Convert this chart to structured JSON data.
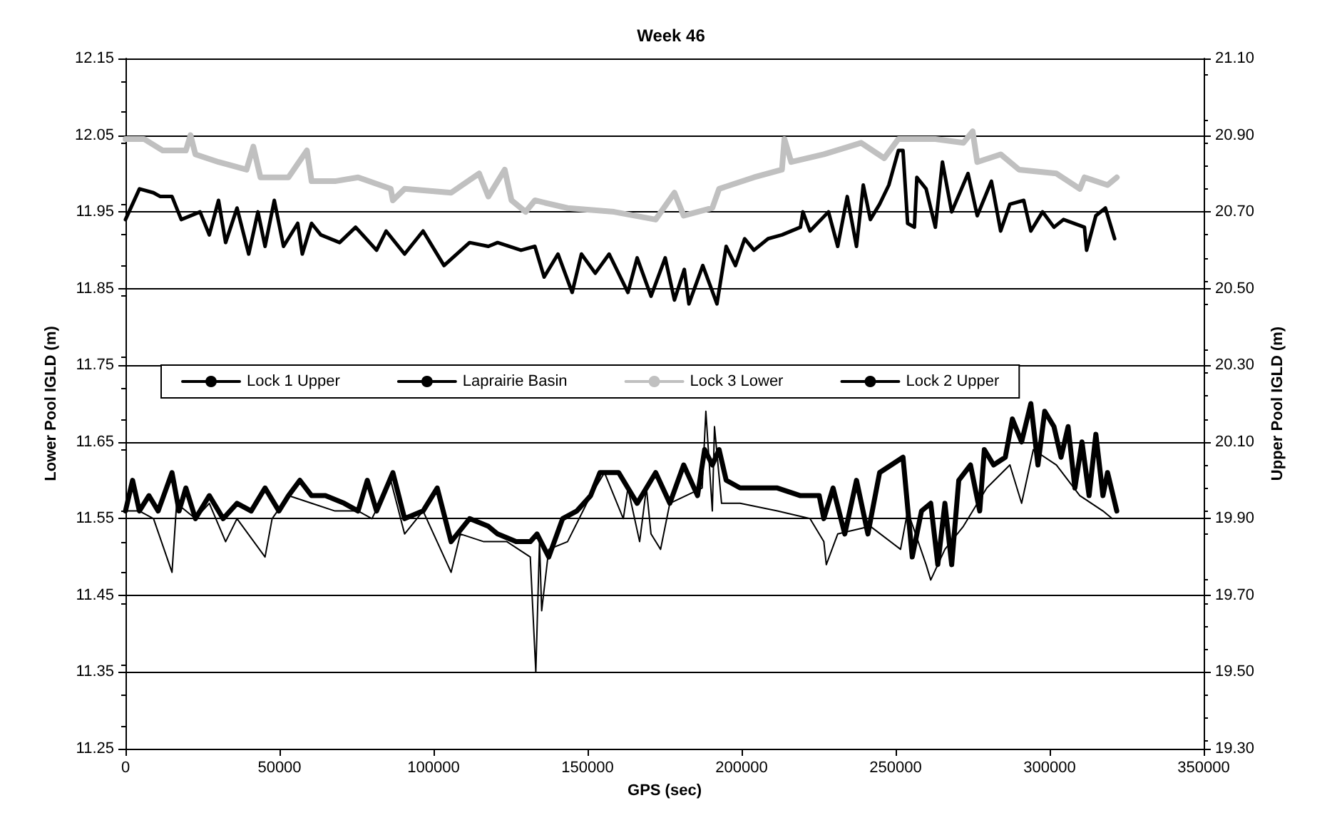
{
  "chart_data": {
    "type": "line",
    "title": "Week 46",
    "xlabel": "GPS (sec)",
    "ylabel": "Lower Pool IGLD (m)",
    "y2label": "Upper Pool IGLD (m)",
    "xlim": [
      0,
      350000
    ],
    "xticks": [
      0,
      50000,
      100000,
      150000,
      200000,
      250000,
      300000,
      350000
    ],
    "ylim": [
      11.25,
      12.15
    ],
    "yticks": [
      11.25,
      11.35,
      11.45,
      11.55,
      11.65,
      11.75,
      11.85,
      11.95,
      12.05,
      12.15
    ],
    "y2lim": [
      19.3,
      21.1
    ],
    "y2ticks": [
      {
        "value": 19.3,
        "label": "19.30"
      },
      {
        "value": 19.5,
        "label": "19.50"
      },
      {
        "value": 19.7,
        "label": "19.70"
      },
      {
        "value": 19.9,
        "label": "19.90"
      },
      {
        "value": 20.1,
        "label": "20.10"
      },
      {
        "value": 20.3,
        "label": "20.30"
      },
      {
        "value": 20.5,
        "label": "20.50"
      },
      {
        "value": 20.7,
        "label": "20.70"
      },
      {
        "value": 20.9,
        "label": "20.90"
      },
      {
        "value": 21.1,
        "label": "21.10"
      }
    ],
    "grid": "y",
    "legend": "left",
    "marker": "none",
    "line_style": "solid",
    "series": [
      {
        "name": "Lock 1 Upper",
        "color": "#000000",
        "x": [
          0,
          2300,
          4500,
          7600,
          10600,
          15100,
          17400,
          19600,
          22700,
          27200,
          31700,
          36200,
          40800,
          45300,
          49800,
          52900,
          56600,
          60400,
          64900,
          71000,
          75500,
          78500,
          81500,
          86800,
          90600,
          96600,
          101200,
          105700,
          111700,
          117800,
          120800,
          126800,
          131400,
          133600,
          137400,
          141900,
          146500,
          151000,
          154000,
          160100,
          166100,
          172100,
          176700,
          181200,
          185700,
          188000,
          190500,
          192700,
          195000,
          199500,
          204000,
          211600,
          219100,
          222200,
          225200,
          226700,
          229700,
          233500,
          237300,
          241000,
          244800,
          248600,
          252400,
          255400,
          258400,
          261400,
          263700,
          266000,
          268200,
          270500,
          274300,
          277300,
          278800,
          281800,
          285600,
          287900,
          290900,
          293900,
          296200,
          298400,
          301400,
          303700,
          306000,
          308200,
          310500,
          312800,
          315000,
          317300,
          318800,
          321800
        ],
        "values": [
          11.56,
          11.6,
          11.56,
          11.58,
          11.56,
          11.61,
          11.56,
          11.59,
          11.55,
          11.58,
          11.55,
          11.57,
          11.56,
          11.59,
          11.56,
          11.58,
          11.6,
          11.58,
          11.58,
          11.57,
          11.56,
          11.6,
          11.56,
          11.61,
          11.55,
          11.56,
          11.59,
          11.52,
          11.55,
          11.54,
          11.53,
          11.52,
          11.52,
          11.53,
          11.5,
          11.55,
          11.56,
          11.58,
          11.61,
          11.61,
          11.57,
          11.61,
          11.57,
          11.62,
          11.58,
          11.64,
          11.62,
          11.64,
          11.6,
          11.59,
          11.59,
          11.59,
          11.58,
          11.58,
          11.58,
          11.55,
          11.59,
          11.53,
          11.6,
          11.53,
          11.61,
          11.62,
          11.63,
          11.5,
          11.56,
          11.57,
          11.49,
          11.57,
          11.49,
          11.6,
          11.62,
          11.56,
          11.64,
          11.62,
          11.63,
          11.68,
          11.65,
          11.7,
          11.62,
          11.69,
          11.67,
          11.63,
          11.67,
          11.59,
          11.65,
          11.58,
          11.66,
          11.58,
          11.61,
          11.56
        ]
      },
      {
        "name": "Laprairie Basin",
        "color": "#000000",
        "x": [
          0,
          4500,
          9100,
          15100,
          16600,
          22700,
          27200,
          32500,
          36200,
          45300,
          47600,
          52900,
          60400,
          68000,
          75500,
          80000,
          86100,
          90600,
          96600,
          105700,
          108700,
          116300,
          123800,
          131400,
          133200,
          134400,
          135100,
          137400,
          143500,
          151000,
          155500,
          161600,
          163100,
          166900,
          169100,
          170600,
          173700,
          176700,
          187200,
          188400,
          190500,
          191200,
          193500,
          199500,
          211600,
          222200,
          226700,
          227500,
          231200,
          241800,
          251600,
          253900,
          259900,
          261400,
          266000,
          272000,
          279600,
          287100,
          290900,
          294700,
          302200,
          309800,
          317300,
          320300
        ],
        "values": [
          11.56,
          11.56,
          11.55,
          11.48,
          11.57,
          11.55,
          11.57,
          11.52,
          11.55,
          11.5,
          11.55,
          11.58,
          11.57,
          11.56,
          11.56,
          11.55,
          11.6,
          11.53,
          11.56,
          11.48,
          11.53,
          11.52,
          11.52,
          11.5,
          11.35,
          11.52,
          11.43,
          11.51,
          11.52,
          11.58,
          11.61,
          11.55,
          11.59,
          11.52,
          11.59,
          11.53,
          11.51,
          11.57,
          11.59,
          11.69,
          11.56,
          11.67,
          11.57,
          11.57,
          11.56,
          11.55,
          11.52,
          11.49,
          11.53,
          11.54,
          11.51,
          11.56,
          11.49,
          11.47,
          11.51,
          11.54,
          11.59,
          11.62,
          11.57,
          11.64,
          11.62,
          11.58,
          11.56,
          11.55
        ]
      },
      {
        "name": "Lock 3 Lower",
        "color": "#c0c0c0",
        "axis": "y2",
        "x": [
          0,
          6000,
          12100,
          19600,
          21100,
          22700,
          30200,
          39300,
          41500,
          43800,
          52900,
          58900,
          60400,
          68000,
          75500,
          86100,
          86800,
          90600,
          105700,
          114800,
          117800,
          123100,
          125300,
          129900,
          132900,
          143500,
          158600,
          172100,
          178200,
          181200,
          190500,
          192700,
          204000,
          213100,
          213900,
          216100,
          226700,
          238800,
          246300,
          250900,
          262900,
          272000,
          275000,
          276500,
          284100,
          290100,
          302200,
          309800,
          311300,
          318800,
          321800
        ],
        "values": [
          20.89,
          20.89,
          20.86,
          20.86,
          20.9,
          20.85,
          20.83,
          20.81,
          20.87,
          20.79,
          20.79,
          20.86,
          20.78,
          20.78,
          20.79,
          20.76,
          20.73,
          20.76,
          20.75,
          20.8,
          20.74,
          20.81,
          20.73,
          20.7,
          20.73,
          20.71,
          20.7,
          20.68,
          20.75,
          20.69,
          20.71,
          20.76,
          20.79,
          20.81,
          20.89,
          20.83,
          20.85,
          20.88,
          20.84,
          20.89,
          20.89,
          20.88,
          20.91,
          20.83,
          20.85,
          20.81,
          20.8,
          20.76,
          20.79,
          20.77,
          20.79
        ]
      },
      {
        "name": "Lock 2 Upper",
        "color": "#000000",
        "axis": "y2",
        "x": [
          0,
          4530,
          9060,
          11300,
          15100,
          18100,
          24200,
          27200,
          30200,
          32500,
          36200,
          40000,
          43000,
          45300,
          48300,
          51300,
          55900,
          57400,
          60400,
          63400,
          69500,
          74700,
          81500,
          84600,
          90600,
          96600,
          103400,
          111700,
          117800,
          120800,
          128400,
          132900,
          135900,
          140400,
          145000,
          148000,
          152500,
          157000,
          163100,
          166100,
          170600,
          175200,
          178200,
          181400,
          182900,
          187400,
          192000,
          195000,
          198000,
          201000,
          204000,
          208600,
          213100,
          219100,
          219900,
          222200,
          228200,
          231200,
          234300,
          237300,
          239500,
          241800,
          244800,
          247800,
          250900,
          252400,
          253900,
          256100,
          256900,
          259900,
          262900,
          265200,
          268200,
          273500,
          276500,
          281100,
          284100,
          287100,
          291600,
          293900,
          297700,
          301400,
          304500,
          311300,
          312000,
          315000,
          318100,
          321100
        ],
        "values": [
          20.68,
          20.76,
          20.75,
          20.74,
          20.74,
          20.68,
          20.7,
          20.64,
          20.73,
          20.62,
          20.71,
          20.59,
          20.7,
          20.61,
          20.73,
          20.61,
          20.67,
          20.59,
          20.67,
          20.64,
          20.62,
          20.66,
          20.6,
          20.65,
          20.59,
          20.65,
          20.56,
          20.62,
          20.61,
          20.62,
          20.6,
          20.61,
          20.53,
          20.59,
          20.49,
          20.59,
          20.54,
          20.59,
          20.49,
          20.58,
          20.48,
          20.58,
          20.47,
          20.55,
          20.46,
          20.56,
          20.46,
          20.61,
          20.56,
          20.63,
          20.6,
          20.63,
          20.64,
          20.66,
          20.7,
          20.65,
          20.7,
          20.61,
          20.74,
          20.61,
          20.77,
          20.68,
          20.72,
          20.77,
          20.86,
          20.86,
          20.67,
          20.66,
          20.79,
          20.76,
          20.66,
          20.83,
          20.7,
          20.8,
          20.69,
          20.78,
          20.65,
          20.72,
          20.73,
          20.65,
          20.7,
          20.66,
          20.68,
          20.66,
          20.6,
          20.69,
          20.71,
          20.63
        ]
      }
    ]
  }
}
